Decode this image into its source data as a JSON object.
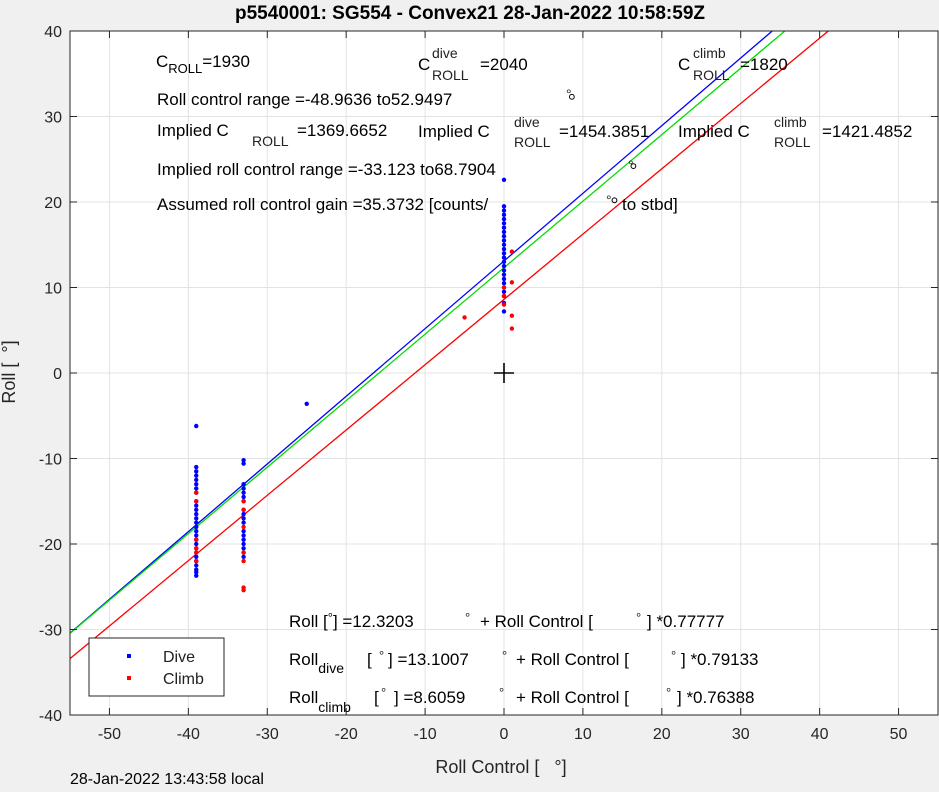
{
  "title": "p5540001: SG554 - Convex21 28-Jan-2022 10:58:59Z",
  "footer": "28-Jan-2022 13:43:58 local",
  "colors": {
    "dive": "#0000ff",
    "climb": "#ff0000",
    "fit_all": "#00dd00",
    "axes_bg": "#ffffff",
    "figure_bg": "#f0f0f0",
    "grid": "#e3e3e3"
  },
  "annotations": {
    "c_roll": {
      "c": "C",
      "sub": "ROLL",
      "value": "=1930"
    },
    "c_roll_dive": {
      "c": "C",
      "sup": "dive",
      "sub": "ROLL",
      "value": "=2040"
    },
    "c_roll_climb": {
      "c": "C",
      "sup": "climb",
      "sub": "ROLL",
      "value": "=1820"
    },
    "roll_control_range": "Roll control range =-48.9636 to52.9497",
    "implied_c_roll": {
      "prefix": "Implied C",
      "sub": "ROLL",
      "value": "=1369.6652"
    },
    "implied_c_roll_dive": {
      "prefix": "Implied C",
      "sup": "dive",
      "sub": "ROLL",
      "value": "=1454.3851"
    },
    "implied_c_roll_climb": {
      "prefix": "Implied C",
      "sup": "climb",
      "sub": "ROLL",
      "value": "=1421.4852"
    },
    "implied_range": "Implied roll control range =-33.123 to68.7904",
    "gain": {
      "before": "Assumed roll control gain =35.3732 [counts/",
      "deg": "°",
      "after": "to stbd]"
    },
    "fit_all": {
      "a": "Roll [",
      "deg1": "°",
      "b": "] =12.3203",
      "deg2": "°",
      "c": "+ Roll Control [",
      "deg3": "°",
      "d": "] *0.77777"
    },
    "fit_dive": {
      "a": "Roll",
      "sub": "dive",
      "b": "[",
      "deg1": "°",
      "c": "] =13.1007",
      "deg2": "°",
      "d": "+ Roll Control [",
      "deg3": "°",
      "e": "] *0.79133"
    },
    "fit_climb": {
      "a": "Roll",
      "sub": "climb",
      "b": "[",
      "deg1": "°",
      "c": "] =8.6059",
      "deg2": "°",
      "d": "+ Roll Control [",
      "deg3": "°",
      "e": "] *0.76388"
    },
    "stray_degree_symbols": [
      "°",
      "°"
    ]
  },
  "chart_data": {
    "type": "scatter",
    "title": "p5540001: SG554 - Convex21 28-Jan-2022 10:58:59Z",
    "xlabel": "Roll Control [   °]",
    "ylabel": "Roll [  °]",
    "xlim": [
      -55,
      55
    ],
    "ylim": [
      -40,
      40
    ],
    "xticks": [
      -50,
      -40,
      -30,
      -20,
      -10,
      0,
      10,
      20,
      30,
      40,
      50
    ],
    "yticks": [
      -40,
      -30,
      -20,
      -10,
      0,
      10,
      20,
      30,
      40
    ],
    "grid": true,
    "legend": {
      "placement": "bottom-left",
      "entries": [
        "Dive",
        "Climb"
      ]
    },
    "series": [
      {
        "name": "Dive",
        "color": "#0000ff",
        "x": [
          -39,
          -39,
          -39,
          -39,
          -39,
          -39,
          -39,
          -39,
          -39,
          -39,
          -39,
          -39,
          -39,
          -39,
          -39,
          -39,
          -39,
          -39,
          -39,
          -39,
          -39,
          -39,
          -39,
          -39,
          -39,
          -39,
          -39,
          -33,
          -33,
          -33,
          -33,
          -33,
          -33,
          -33,
          -33,
          -33,
          -33,
          -33,
          -33,
          -33,
          -33,
          -33,
          -33,
          -33,
          -33,
          -25,
          0,
          0,
          0,
          0,
          0,
          0,
          0,
          0,
          0,
          0,
          0,
          0,
          0,
          0,
          0,
          0,
          0,
          0,
          0,
          0,
          0,
          0,
          0,
          0,
          0
        ],
        "y": [
          -6.2,
          -11,
          -11.5,
          -12,
          -12.5,
          -13,
          -13.5,
          -14,
          -15,
          -15.5,
          -16,
          -16.5,
          -17,
          -17.5,
          -18,
          -18.5,
          -19,
          -19.5,
          -20,
          -20.5,
          -21,
          -21.5,
          -22,
          -22.5,
          -23,
          -23.3,
          -23.7,
          -10.2,
          -10.6,
          -13,
          -13.5,
          -14,
          -14.5,
          -15,
          -16,
          -16.5,
          -17,
          -17.5,
          -18.5,
          -19,
          -19.5,
          -20,
          -20.5,
          -21,
          -21.5,
          -3.6,
          7.2,
          8.2,
          9,
          9.5,
          10,
          10.5,
          11,
          11.5,
          12,
          12.5,
          13,
          13.5,
          14,
          14.5,
          15,
          15.5,
          16,
          16.5,
          17,
          17.5,
          18,
          18.5,
          19,
          19.5,
          22.6
        ]
      },
      {
        "name": "Climb",
        "color": "#ff0000",
        "x": [
          -39,
          -39,
          -39,
          -39,
          -39,
          -39,
          -33,
          -33,
          -33,
          -33,
          -33,
          -33,
          -33,
          -5,
          0,
          0,
          0,
          1,
          1,
          1,
          1
        ],
        "y": [
          -14,
          -15,
          -19.5,
          -20.5,
          -21,
          -22,
          -15,
          -16,
          -18,
          -21,
          -22,
          -25.1,
          -25.4,
          6.5,
          8,
          9,
          10,
          14.2,
          10.6,
          6.7,
          5.2
        ]
      }
    ],
    "fits": [
      {
        "name": "Dive",
        "color": "#0000ff",
        "intercept": 13.1007,
        "slope": 0.79133
      },
      {
        "name": "All",
        "color": "#00dd00",
        "intercept": 12.3203,
        "slope": 0.77777
      },
      {
        "name": "Climb",
        "color": "#ff0000",
        "intercept": 8.6059,
        "slope": 0.76388
      }
    ],
    "markers": [
      {
        "type": "plus",
        "x": 0,
        "y": 0
      },
      {
        "type": "circle",
        "x": 8.6,
        "y": 32.3
      },
      {
        "type": "circle",
        "x": 16.4,
        "y": 24.2
      },
      {
        "type": "circle",
        "x": 14,
        "y": 20.2
      }
    ]
  }
}
